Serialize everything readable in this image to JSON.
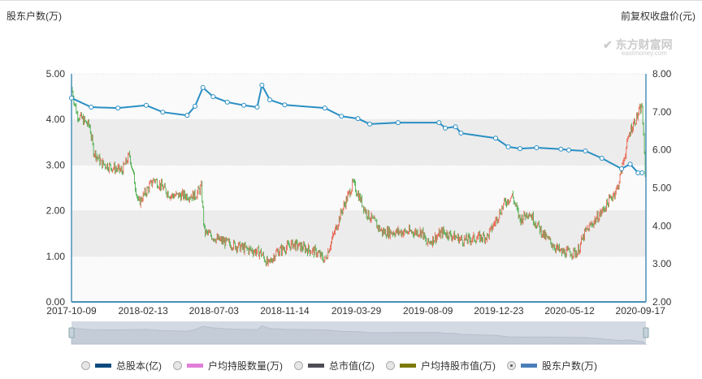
{
  "left_axis_title": "股东户数(万)",
  "right_axis_title": "前复权收盘价(元)",
  "watermark": {
    "cn": "东方财富网",
    "en": "eastmoney.com"
  },
  "legend": [
    {
      "label": "总股本(亿)",
      "color": "#0d4a80",
      "selected": false
    },
    {
      "label": "户均持股数量(万)",
      "color": "#e07fd8",
      "selected": false
    },
    {
      "label": "总市值(亿)",
      "color": "#4d4d55",
      "selected": false
    },
    {
      "label": "户均持股市值(万)",
      "color": "#7c7a0c",
      "selected": false
    },
    {
      "label": "股东户数(万)",
      "color": "#4a7eb8",
      "selected": true
    }
  ],
  "chart_data": {
    "type": "line+candlestick",
    "x_unit": "trading-day index",
    "x_range": [
      0,
      730
    ],
    "x_ticks": [
      {
        "i": 0,
        "label": "2017-10-09"
      },
      {
        "i": 91,
        "label": "2018-02-13"
      },
      {
        "i": 181,
        "label": "2018-07-03"
      },
      {
        "i": 271,
        "label": "2018-11-14"
      },
      {
        "i": 362,
        "label": "2019-03-29"
      },
      {
        "i": 453,
        "label": "2019-08-09"
      },
      {
        "i": 543,
        "label": "2019-12-23"
      },
      {
        "i": 633,
        "label": "2020-05-12"
      },
      {
        "i": 723,
        "label": "2020-09-17"
      }
    ],
    "left_axis": {
      "min": 0,
      "max": 5,
      "ticks": [
        "0.00",
        "1.00",
        "2.00",
        "3.00",
        "4.00",
        "5.00"
      ]
    },
    "right_axis": {
      "min": 2,
      "max": 8,
      "ticks": [
        "2.00",
        "3.00",
        "4.00",
        "5.00",
        "6.00",
        "7.00",
        "8.00"
      ]
    },
    "holders_series": {
      "name": "股东户数(万)",
      "color": "#2a8fc4",
      "points": [
        [
          0,
          4.47
        ],
        [
          25,
          4.27
        ],
        [
          59,
          4.25
        ],
        [
          95,
          4.31
        ],
        [
          116,
          4.16
        ],
        [
          147,
          4.09
        ],
        [
          157,
          4.29
        ],
        [
          167,
          4.7
        ],
        [
          180,
          4.5
        ],
        [
          198,
          4.38
        ],
        [
          219,
          4.31
        ],
        [
          236,
          4.27
        ],
        [
          242,
          4.75
        ],
        [
          252,
          4.43
        ],
        [
          271,
          4.32
        ],
        [
          322,
          4.25
        ],
        [
          343,
          4.07
        ],
        [
          364,
          4.02
        ],
        [
          379,
          3.9
        ],
        [
          415,
          3.93
        ],
        [
          467,
          3.93
        ],
        [
          475,
          3.81
        ],
        [
          488,
          3.84
        ],
        [
          495,
          3.7
        ],
        [
          539,
          3.59
        ],
        [
          555,
          3.4
        ],
        [
          570,
          3.36
        ],
        [
          591,
          3.38
        ],
        [
          622,
          3.35
        ],
        [
          632,
          3.33
        ],
        [
          653,
          3.31
        ],
        [
          674,
          3.15
        ],
        [
          699,
          2.92
        ],
        [
          710,
          3.02
        ],
        [
          720,
          2.83
        ],
        [
          725,
          2.83
        ]
      ]
    },
    "price_series": {
      "name": "前复权收盘价(元)",
      "up_color": "#e8543f",
      "down_color": "#3aa63a",
      "points": [
        [
          0,
          7.62
        ],
        [
          7,
          6.94
        ],
        [
          23,
          6.62
        ],
        [
          28,
          5.97
        ],
        [
          38,
          5.65
        ],
        [
          64,
          5.44
        ],
        [
          74,
          5.87
        ],
        [
          85,
          4.59
        ],
        [
          105,
          5.23
        ],
        [
          126,
          4.8
        ],
        [
          157,
          4.8
        ],
        [
          165,
          5.01
        ],
        [
          169,
          3.84
        ],
        [
          188,
          3.62
        ],
        [
          219,
          3.41
        ],
        [
          240,
          3.3
        ],
        [
          250,
          2.98
        ],
        [
          260,
          3.3
        ],
        [
          281,
          3.52
        ],
        [
          312,
          3.3
        ],
        [
          322,
          3.09
        ],
        [
          343,
          4.37
        ],
        [
          358,
          5.12
        ],
        [
          374,
          4.37
        ],
        [
          395,
          3.84
        ],
        [
          446,
          3.84
        ],
        [
          451,
          3.52
        ],
        [
          472,
          3.84
        ],
        [
          498,
          3.62
        ],
        [
          529,
          3.73
        ],
        [
          550,
          4.59
        ],
        [
          560,
          4.8
        ],
        [
          570,
          4.16
        ],
        [
          581,
          4.37
        ],
        [
          601,
          3.73
        ],
        [
          622,
          3.3
        ],
        [
          643,
          3.3
        ],
        [
          653,
          3.84
        ],
        [
          674,
          4.37
        ],
        [
          694,
          5.01
        ],
        [
          710,
          6.51
        ],
        [
          725,
          7.15
        ],
        [
          730,
          5.01
        ]
      ]
    }
  }
}
